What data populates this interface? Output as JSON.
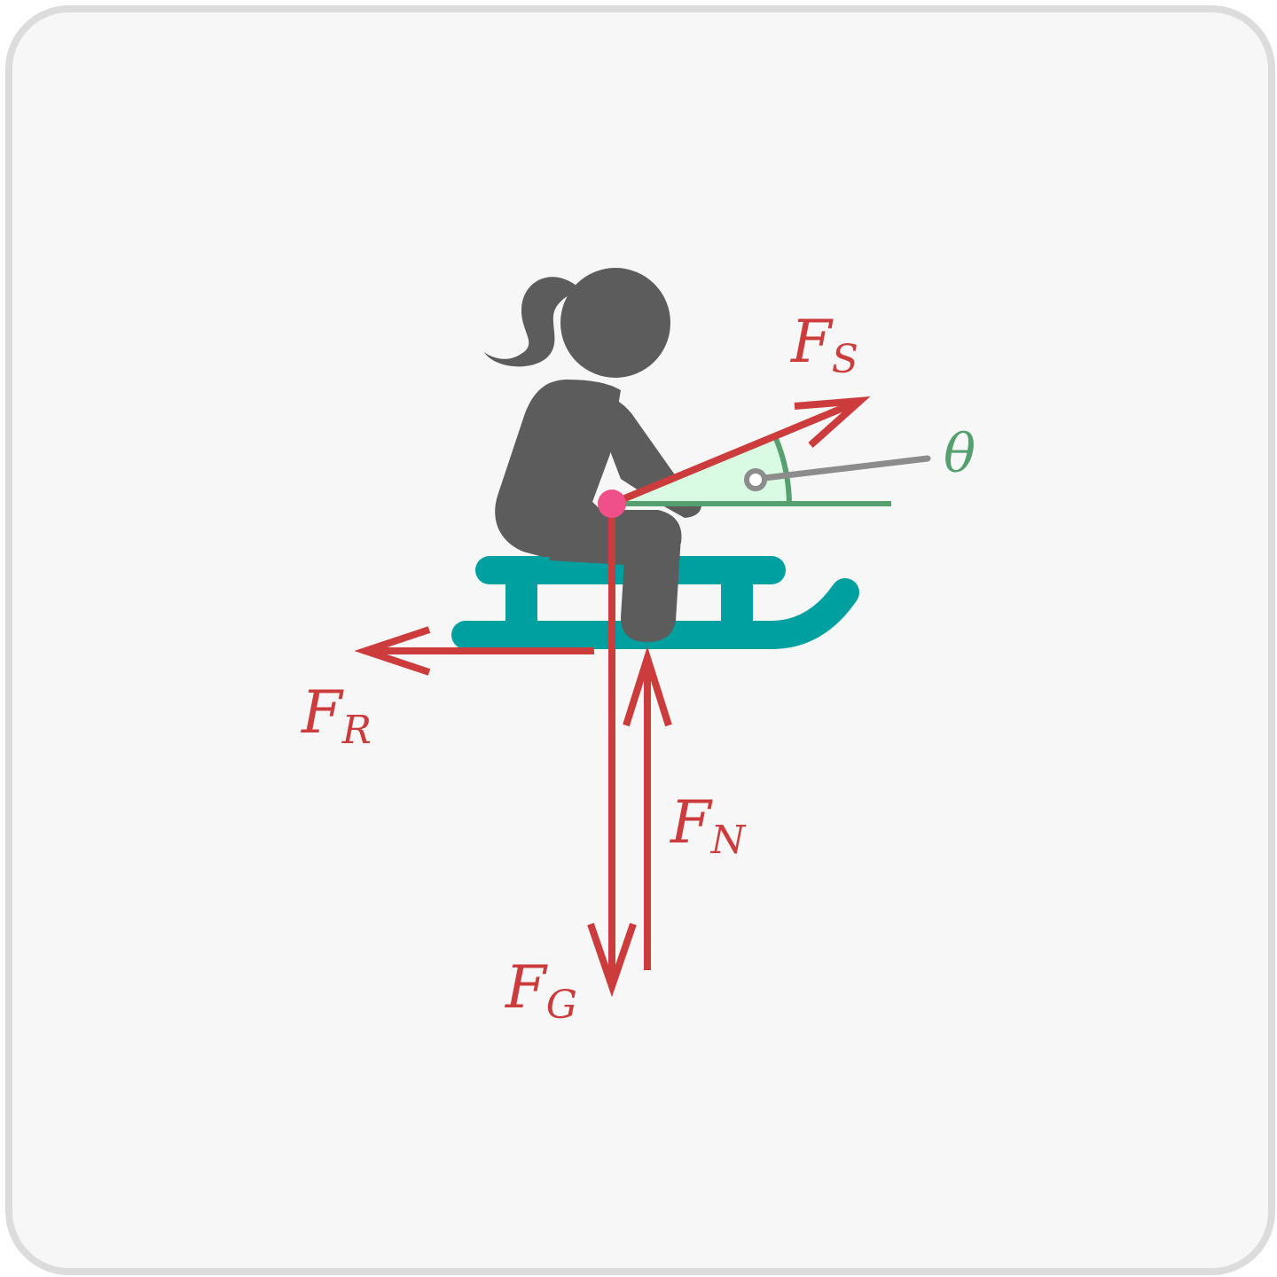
{
  "forces": {
    "sled_pull": {
      "main": "F",
      "sub": "S"
    },
    "friction": {
      "main": "F",
      "sub": "R"
    },
    "normal": {
      "main": "F",
      "sub": "N"
    },
    "gravity": {
      "main": "F",
      "sub": "G"
    }
  },
  "angle": {
    "label": "θ"
  },
  "colors": {
    "force": "#cc3c3c",
    "angle": "#55a06e",
    "angle_fill": "#d9fbe3",
    "person": "#5c5c5c",
    "sled": "#00a0a0",
    "origin_point": "#f0508a",
    "pointer": "#8c8c8c"
  }
}
